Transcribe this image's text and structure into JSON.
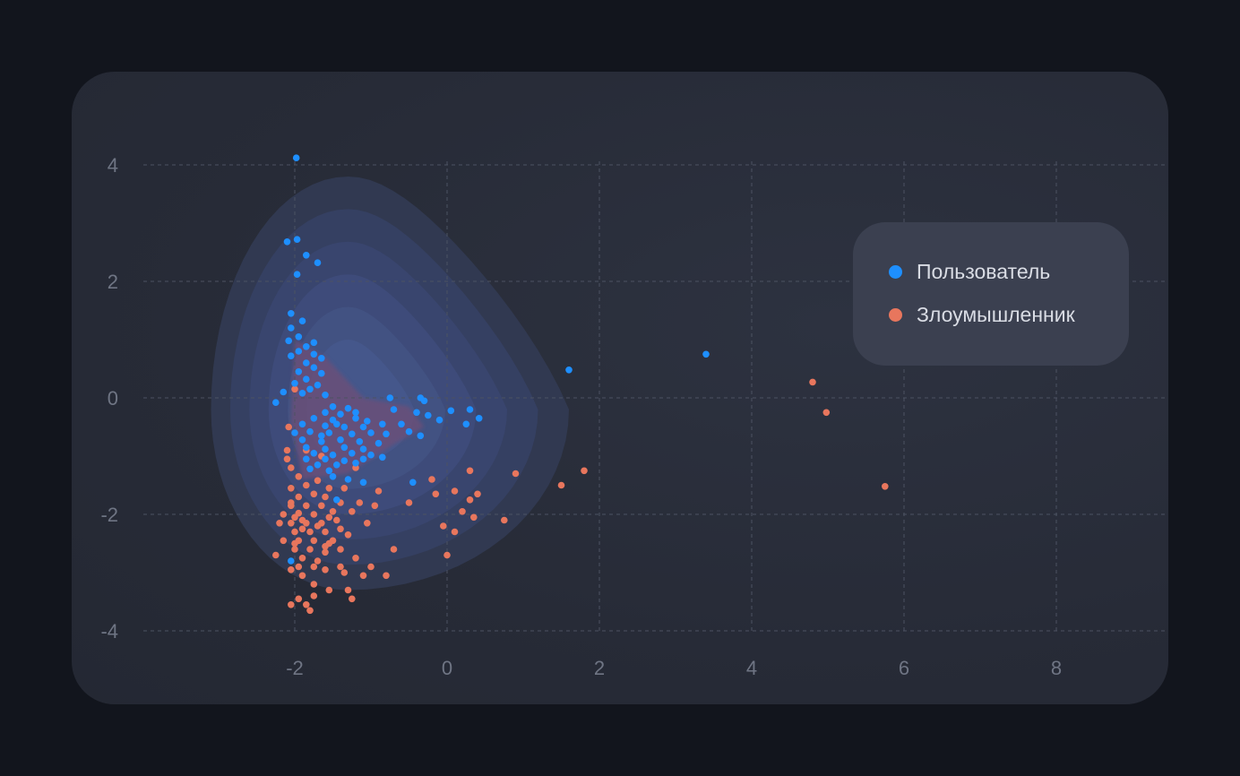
{
  "chart_data": {
    "type": "scatter",
    "title": "",
    "xlabel": "",
    "ylabel": "",
    "xlim": [
      -4,
      9.5
    ],
    "ylim": [
      -4.2,
      4.7
    ],
    "x_ticks": [
      "-2",
      "0",
      "2",
      "4",
      "6",
      "8"
    ],
    "y_ticks": [
      "4",
      "2",
      "0",
      "-2",
      "-4"
    ],
    "x_tick_values": [
      -2,
      0,
      2,
      4,
      6,
      8
    ],
    "y_tick_values": [
      4,
      2,
      0,
      -2,
      -4
    ],
    "grid": true,
    "legend_position": "top-right",
    "density_contours": true,
    "series": [
      {
        "name": "Пользователь",
        "color": "#1e8fff",
        "points": [
          [
            -1.98,
            4.12
          ],
          [
            -1.97,
            2.72
          ],
          [
            -2.1,
            2.68
          ],
          [
            -1.85,
            2.45
          ],
          [
            -1.7,
            2.32
          ],
          [
            -1.97,
            2.12
          ],
          [
            1.6,
            0.48
          ],
          [
            3.4,
            0.75
          ],
          [
            6.25,
            0.82
          ],
          [
            -2.05,
            1.45
          ],
          [
            -1.9,
            1.32
          ],
          [
            -2.05,
            1.2
          ],
          [
            -1.95,
            1.05
          ],
          [
            -2.08,
            0.98
          ],
          [
            -1.75,
            0.95
          ],
          [
            -1.85,
            0.88
          ],
          [
            -1.95,
            0.8
          ],
          [
            -2.05,
            0.72
          ],
          [
            -1.75,
            0.75
          ],
          [
            -1.65,
            0.68
          ],
          [
            -1.85,
            0.6
          ],
          [
            -1.75,
            0.52
          ],
          [
            -1.95,
            0.45
          ],
          [
            -1.65,
            0.42
          ],
          [
            -1.85,
            0.32
          ],
          [
            -2.0,
            0.25
          ],
          [
            -1.7,
            0.22
          ],
          [
            -1.8,
            0.15
          ],
          [
            -1.9,
            0.08
          ],
          [
            -2.15,
            0.1
          ],
          [
            -1.6,
            0.05
          ],
          [
            -2.25,
            -0.08
          ],
          [
            -1.5,
            -0.15
          ],
          [
            -1.3,
            -0.18
          ],
          [
            -1.6,
            -0.25
          ],
          [
            -1.4,
            -0.28
          ],
          [
            -1.75,
            -0.35
          ],
          [
            -1.5,
            -0.38
          ],
          [
            -1.2,
            -0.35
          ],
          [
            -1.05,
            -0.4
          ],
          [
            -1.9,
            -0.45
          ],
          [
            -1.6,
            -0.48
          ],
          [
            -1.35,
            -0.5
          ],
          [
            -1.1,
            -0.5
          ],
          [
            -0.85,
            -0.45
          ],
          [
            -0.6,
            -0.45
          ],
          [
            -2.0,
            -0.6
          ],
          [
            -1.8,
            -0.58
          ],
          [
            -1.55,
            -0.6
          ],
          [
            -1.25,
            -0.62
          ],
          [
            -1.0,
            -0.6
          ],
          [
            -0.8,
            -0.62
          ],
          [
            -0.5,
            -0.58
          ],
          [
            -1.9,
            -0.72
          ],
          [
            -1.65,
            -0.75
          ],
          [
            -1.4,
            -0.72
          ],
          [
            -1.15,
            -0.75
          ],
          [
            -0.9,
            -0.78
          ],
          [
            -1.85,
            -0.85
          ],
          [
            -1.6,
            -0.88
          ],
          [
            -1.35,
            -0.85
          ],
          [
            -1.1,
            -0.88
          ],
          [
            -1.75,
            -0.95
          ],
          [
            -1.5,
            -0.98
          ],
          [
            -1.25,
            -0.95
          ],
          [
            -1.0,
            -0.98
          ],
          [
            -0.85,
            -1.02
          ],
          [
            -1.85,
            -1.05
          ],
          [
            -1.6,
            -1.05
          ],
          [
            -1.35,
            -1.08
          ],
          [
            -1.1,
            -1.05
          ],
          [
            -1.7,
            -1.15
          ],
          [
            -1.45,
            -1.15
          ],
          [
            -1.2,
            -1.12
          ],
          [
            -1.55,
            -1.25
          ],
          [
            -1.8,
            -1.22
          ],
          [
            -1.5,
            -1.35
          ],
          [
            -1.3,
            -1.4
          ],
          [
            -1.1,
            -1.45
          ],
          [
            -0.45,
            -1.45
          ],
          [
            -1.45,
            -1.75
          ],
          [
            -2.05,
            -2.8
          ],
          [
            -0.7,
            -0.2
          ],
          [
            -0.4,
            -0.25
          ],
          [
            -0.25,
            -0.3
          ],
          [
            -0.1,
            -0.38
          ],
          [
            0.05,
            -0.22
          ],
          [
            0.3,
            -0.2
          ],
          [
            0.42,
            -0.35
          ],
          [
            0.25,
            -0.45
          ],
          [
            -0.3,
            -0.05
          ],
          [
            -0.35,
            0.0
          ],
          [
            -0.75,
            0.0
          ],
          [
            -0.35,
            -0.65
          ],
          [
            -1.2,
            -0.25
          ],
          [
            -1.45,
            -0.45
          ],
          [
            -1.65,
            -0.65
          ]
        ]
      },
      {
        "name": "Злоумышленник",
        "color": "#e8765d",
        "points": [
          [
            4.8,
            0.27
          ],
          [
            4.98,
            -0.25
          ],
          [
            5.75,
            -1.52
          ],
          [
            -2.0,
            0.15
          ],
          [
            -2.08,
            -0.5
          ],
          [
            -2.1,
            -0.9
          ],
          [
            -2.1,
            -1.05
          ],
          [
            -2.05,
            -1.2
          ],
          [
            -1.95,
            -1.35
          ],
          [
            -2.05,
            -1.55
          ],
          [
            -1.85,
            -1.5
          ],
          [
            -1.7,
            -1.42
          ],
          [
            -1.55,
            -1.55
          ],
          [
            -1.95,
            -1.7
          ],
          [
            -1.75,
            -1.65
          ],
          [
            -1.6,
            -1.7
          ],
          [
            -2.05,
            -1.85
          ],
          [
            -1.85,
            -1.85
          ],
          [
            -1.65,
            -1.85
          ],
          [
            -1.4,
            -1.8
          ],
          [
            -2.15,
            -2.0
          ],
          [
            -1.95,
            -1.98
          ],
          [
            -1.75,
            -2.0
          ],
          [
            -1.55,
            -2.05
          ],
          [
            -2.05,
            -2.15
          ],
          [
            -1.85,
            -2.15
          ],
          [
            -1.65,
            -2.15
          ],
          [
            -2.2,
            -2.15
          ],
          [
            -2.0,
            -2.3
          ],
          [
            -1.8,
            -2.3
          ],
          [
            -1.6,
            -2.3
          ],
          [
            -1.4,
            -2.25
          ],
          [
            -2.15,
            -2.45
          ],
          [
            -1.95,
            -2.45
          ],
          [
            -1.75,
            -2.45
          ],
          [
            -1.55,
            -2.5
          ],
          [
            -2.0,
            -2.6
          ],
          [
            -1.8,
            -2.6
          ],
          [
            -1.6,
            -2.65
          ],
          [
            -2.25,
            -2.7
          ],
          [
            -1.9,
            -2.75
          ],
          [
            -1.7,
            -2.8
          ],
          [
            -1.95,
            -2.9
          ],
          [
            -1.75,
            -2.9
          ],
          [
            -2.05,
            -2.95
          ],
          [
            -1.6,
            -2.95
          ],
          [
            -1.4,
            -2.9
          ],
          [
            -1.9,
            -3.05
          ],
          [
            -1.75,
            -3.2
          ],
          [
            -1.55,
            -3.3
          ],
          [
            -1.95,
            -3.45
          ],
          [
            -1.75,
            -3.4
          ],
          [
            -2.05,
            -3.55
          ],
          [
            -1.85,
            -3.55
          ],
          [
            -1.8,
            -3.65
          ],
          [
            -1.3,
            -3.3
          ],
          [
            -1.25,
            -3.45
          ],
          [
            -1.4,
            -2.6
          ],
          [
            -1.2,
            -2.75
          ],
          [
            -1.0,
            -2.9
          ],
          [
            -0.8,
            -3.05
          ],
          [
            -1.35,
            -3.0
          ],
          [
            -1.1,
            -3.05
          ],
          [
            -1.5,
            -2.45
          ],
          [
            -1.3,
            -2.35
          ],
          [
            -1.45,
            -2.1
          ],
          [
            -1.25,
            -1.95
          ],
          [
            -1.05,
            -2.15
          ],
          [
            -0.95,
            -1.85
          ],
          [
            -1.15,
            -1.8
          ],
          [
            -0.9,
            -1.6
          ],
          [
            -0.7,
            -2.6
          ],
          [
            -0.5,
            -1.8
          ],
          [
            -0.2,
            -1.4
          ],
          [
            -0.15,
            -1.65
          ],
          [
            0.1,
            -1.6
          ],
          [
            0.2,
            -1.95
          ],
          [
            0.3,
            -1.75
          ],
          [
            0.4,
            -1.65
          ],
          [
            0.35,
            -2.05
          ],
          [
            -0.05,
            -2.2
          ],
          [
            0.1,
            -2.3
          ],
          [
            0.0,
            -2.7
          ],
          [
            0.3,
            -1.25
          ],
          [
            0.75,
            -2.1
          ],
          [
            0.9,
            -1.3
          ],
          [
            1.5,
            -1.5
          ],
          [
            1.8,
            -1.25
          ],
          [
            -1.2,
            -1.2
          ],
          [
            -1.65,
            -1.0
          ],
          [
            -1.85,
            -0.9
          ],
          [
            -2.05,
            -1.8
          ],
          [
            -2.0,
            -2.05
          ],
          [
            -1.9,
            -2.25
          ],
          [
            -1.7,
            -2.2
          ],
          [
            -2.0,
            -2.5
          ],
          [
            -1.9,
            -2.1
          ],
          [
            -1.6,
            -2.55
          ],
          [
            -1.5,
            -1.95
          ],
          [
            -1.35,
            -1.55
          ]
        ]
      }
    ]
  },
  "legend": {
    "items": [
      {
        "label": "Пользователь",
        "color": "#1e8fff"
      },
      {
        "label": "Злоумышленник",
        "color": "#e8765d"
      }
    ]
  }
}
